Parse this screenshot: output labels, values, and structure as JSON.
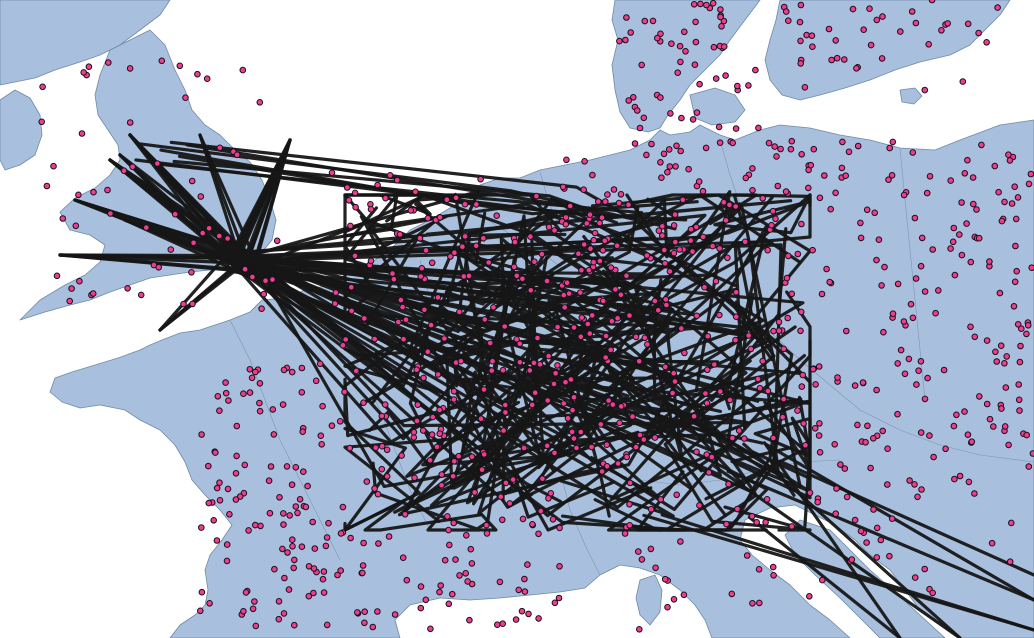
{
  "map": {
    "land_color": "#a8bfdd",
    "border_color": "#6f8aa9",
    "sea_color": "#ffffff",
    "track_color": "#161616",
    "point_fill": "#ee3f8c",
    "point_stroke": "#1b0f1f"
  }
}
